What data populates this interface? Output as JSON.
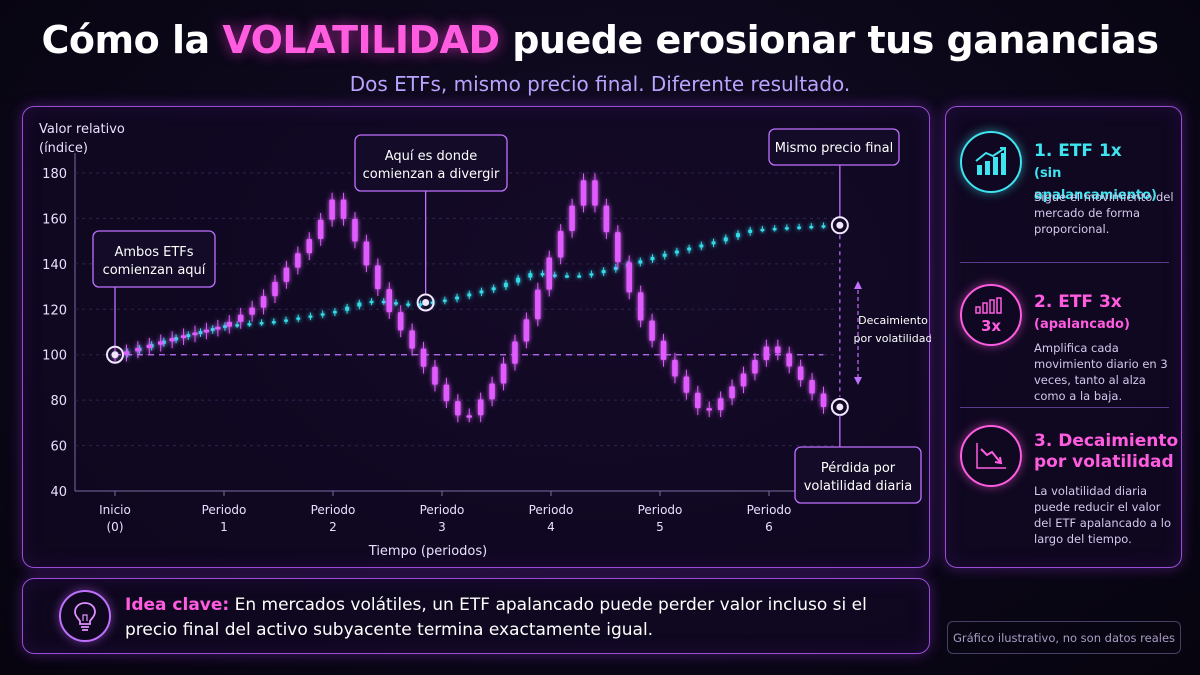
{
  "header": {
    "title_pre": "Cómo la ",
    "title_highlight": "VOLATILIDAD",
    "title_post": " puede erosionar tus ganancias",
    "subtitle": "Dos ETFs, mismo precio final. Diferente resultado."
  },
  "chart_data": {
    "type": "candlestick",
    "ylabel_line1": "Valor relativo",
    "ylabel_line2": "(índice)",
    "xlabel": "Tiempo (periodos)",
    "ylim": [
      40,
      180
    ],
    "yticks": [
      40,
      60,
      80,
      100,
      120,
      140,
      160,
      180
    ],
    "xlim": [
      0,
      6.5
    ],
    "xticks": [
      {
        "x": 0,
        "line1": "Inicio",
        "line2": "(0)"
      },
      {
        "x": 1,
        "line1": "Periodo",
        "line2": "1"
      },
      {
        "x": 2,
        "line1": "Periodo",
        "line2": "2"
      },
      {
        "x": 3,
        "line1": "Periodo",
        "line2": "3"
      },
      {
        "x": 4,
        "line1": "Periodo",
        "line2": "4"
      },
      {
        "x": 5,
        "line1": "Periodo",
        "line2": "5"
      },
      {
        "x": 6,
        "line1": "Periodo",
        "line2": "6"
      }
    ],
    "baseline": 100,
    "series": [
      {
        "color": "#34d9e8",
        "points": [
          [
            0,
            100
          ],
          [
            0.5,
            107
          ],
          [
            1,
            113
          ],
          [
            1.5,
            115
          ],
          [
            2,
            119
          ],
          [
            2.3,
            124
          ],
          [
            2.7,
            122
          ],
          [
            3,
            124
          ],
          [
            3.5,
            130
          ],
          [
            3.8,
            136
          ],
          [
            4,
            135
          ],
          [
            4.3,
            135
          ],
          [
            4.7,
            140
          ],
          [
            5,
            144
          ],
          [
            5.5,
            150
          ],
          [
            5.8,
            155
          ],
          [
            6.1,
            156
          ],
          [
            6.5,
            157
          ]
        ]
      },
      {
        "color": "#e05cff",
        "points": [
          [
            0,
            100
          ],
          [
            0.5,
            107
          ],
          [
            1,
            113
          ],
          [
            1.3,
            122
          ],
          [
            1.8,
            152
          ],
          [
            2,
            169
          ],
          [
            2.2,
            150
          ],
          [
            2.5,
            120
          ],
          [
            2.8,
            97
          ],
          [
            3,
            82
          ],
          [
            3.2,
            70
          ],
          [
            3.5,
            90
          ],
          [
            3.8,
            118
          ],
          [
            4,
            145
          ],
          [
            4.3,
            177
          ],
          [
            4.5,
            155
          ],
          [
            4.8,
            117
          ],
          [
            5,
            100
          ],
          [
            5.2,
            86
          ],
          [
            5.4,
            73
          ],
          [
            5.7,
            88
          ],
          [
            6,
            105
          ],
          [
            6.2,
            94
          ],
          [
            6.5,
            77
          ]
        ]
      }
    ],
    "annotations": [
      {
        "id": "start",
        "line1": "Ambos ETFs",
        "line2": "comienzan aquí"
      },
      {
        "id": "diverge",
        "line1": "Aquí es donde",
        "line2": "comienzan a divergir"
      },
      {
        "id": "same_end",
        "line1": "Mismo precio final",
        "line2": ""
      },
      {
        "id": "loss",
        "line1": "Pérdida por",
        "line2": "volatilidad diaria"
      },
      {
        "id": "decay",
        "line1": "Decaimiento",
        "line2": "por volatilidad"
      }
    ]
  },
  "sidebar": {
    "items": [
      {
        "title": "1. ETF 1x",
        "subtitle": "(sin apalancamiento)",
        "description": "Sigue el movimiento del mercado de forma proporcional.",
        "color": "#3ee4f0",
        "icon": "bar-chart-up-icon"
      },
      {
        "title": "2. ETF 3x",
        "subtitle": "(apalancado)",
        "description": "Amplifica cada movimiento diario en 3 veces, tanto al alza como a la baja.",
        "color": "#ff5ce0",
        "icon": "leverage-3x-icon"
      },
      {
        "title": "3. Decaimiento",
        "subtitle": "por volatilidad",
        "description": "La volatilidad diaria puede reducir el valor del ETF apalancado a lo largo del tiempo.",
        "color": "#ff5ce0",
        "icon": "decline-chart-icon"
      }
    ]
  },
  "key_idea": {
    "label": "Idea clave:",
    "text": " En mercados volátiles, un ETF apalancado puede perder valor incluso si el precio final del activo subyacente termina exactamente igual.",
    "icon": "lightbulb-icon"
  },
  "note": "Gráfico ilustrativo, no son datos reales"
}
